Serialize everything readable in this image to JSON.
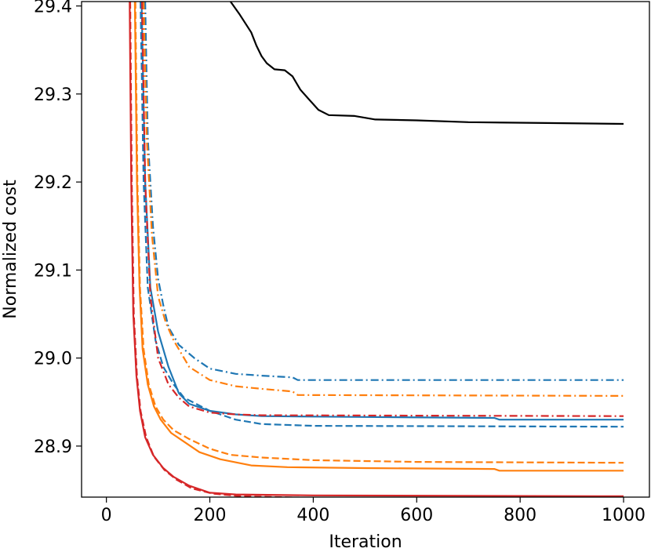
{
  "chart_data": {
    "type": "line",
    "title": "",
    "xlabel": "Iteration",
    "ylabel": "Normalized cost",
    "xlim": [
      -48,
      1050
    ],
    "ylim": [
      28.842,
      29.405
    ],
    "xticks": [
      0,
      200,
      400,
      600,
      800,
      1000
    ],
    "yticks": [
      28.9,
      29.0,
      29.1,
      29.2,
      29.3,
      29.4
    ],
    "xtick_labels": [
      "0",
      "200",
      "400",
      "600",
      "800",
      "1000"
    ],
    "ytick_labels": [
      "28.9",
      "29.0",
      "29.1",
      "29.2",
      "29.3",
      "29.4"
    ],
    "grid": false,
    "legend": "none",
    "series": [
      {
        "color": "#000000",
        "dash": "solid",
        "points": [
          [
            240,
            29.405
          ],
          [
            258,
            29.39
          ],
          [
            280,
            29.37
          ],
          [
            290,
            29.355
          ],
          [
            300,
            29.343
          ],
          [
            310,
            29.335
          ],
          [
            325,
            29.328
          ],
          [
            345,
            29.327
          ],
          [
            360,
            29.32
          ],
          [
            375,
            29.305
          ],
          [
            390,
            29.295
          ],
          [
            410,
            29.282
          ],
          [
            430,
            29.276
          ],
          [
            480,
            29.275
          ],
          [
            520,
            29.271
          ],
          [
            600,
            29.27
          ],
          [
            700,
            29.268
          ],
          [
            850,
            29.267
          ],
          [
            1000,
            29.266
          ]
        ]
      },
      {
        "color": "#1f77b4",
        "dash": "dashdot",
        "points": [
          [
            75,
            29.405
          ],
          [
            80,
            29.25
          ],
          [
            90,
            29.15
          ],
          [
            100,
            29.09
          ],
          [
            110,
            29.06
          ],
          [
            120,
            29.035
          ],
          [
            140,
            29.015
          ],
          [
            170,
            29.0
          ],
          [
            200,
            28.988
          ],
          [
            250,
            28.982
          ],
          [
            300,
            28.98
          ],
          [
            360,
            28.978
          ],
          [
            370,
            28.975
          ],
          [
            1000,
            28.975
          ]
        ]
      },
      {
        "color": "#1f77b4",
        "dash": "solid",
        "points": [
          [
            68,
            29.405
          ],
          [
            75,
            29.2
          ],
          [
            85,
            29.08
          ],
          [
            100,
            29.03
          ],
          [
            120,
            28.99
          ],
          [
            140,
            28.96
          ],
          [
            160,
            28.948
          ],
          [
            200,
            28.94
          ],
          [
            250,
            28.936
          ],
          [
            300,
            28.934
          ],
          [
            500,
            28.933
          ],
          [
            750,
            28.932
          ],
          [
            760,
            28.93
          ],
          [
            1000,
            28.93
          ]
        ]
      },
      {
        "color": "#1f77b4",
        "dash": "dashed",
        "points": [
          [
            66,
            29.405
          ],
          [
            72,
            29.2
          ],
          [
            80,
            29.08
          ],
          [
            95,
            29.02
          ],
          [
            110,
            28.99
          ],
          [
            130,
            28.97
          ],
          [
            150,
            28.955
          ],
          [
            200,
            28.94
          ],
          [
            250,
            28.93
          ],
          [
            300,
            28.925
          ],
          [
            400,
            28.923
          ],
          [
            1000,
            28.922
          ]
        ]
      },
      {
        "color": "#ff7f0e",
        "dash": "dashdot",
        "points": [
          [
            72,
            29.405
          ],
          [
            78,
            29.25
          ],
          [
            88,
            29.14
          ],
          [
            100,
            29.07
          ],
          [
            115,
            29.04
          ],
          [
            130,
            29.02
          ],
          [
            160,
            28.99
          ],
          [
            200,
            28.975
          ],
          [
            250,
            28.968
          ],
          [
            300,
            28.965
          ],
          [
            360,
            28.962
          ],
          [
            370,
            28.958
          ],
          [
            1000,
            28.957
          ]
        ]
      },
      {
        "color": "#d62728",
        "dash": "dashdot",
        "points": [
          [
            69,
            29.405
          ],
          [
            75,
            29.2
          ],
          [
            85,
            29.07
          ],
          [
            100,
            29.0
          ],
          [
            120,
            28.97
          ],
          [
            140,
            28.955
          ],
          [
            160,
            28.945
          ],
          [
            200,
            28.938
          ],
          [
            250,
            28.936
          ],
          [
            300,
            28.935
          ],
          [
            1000,
            28.934
          ]
        ]
      },
      {
        "color": "#ff7f0e",
        "dash": "dashed",
        "points": [
          [
            56,
            29.405
          ],
          [
            60,
            29.2
          ],
          [
            65,
            29.08
          ],
          [
            72,
            29.01
          ],
          [
            82,
            28.97
          ],
          [
            95,
            28.945
          ],
          [
            110,
            28.93
          ],
          [
            130,
            28.918
          ],
          [
            160,
            28.908
          ],
          [
            200,
            28.897
          ],
          [
            240,
            28.89
          ],
          [
            300,
            28.887
          ],
          [
            400,
            28.884
          ],
          [
            600,
            28.882
          ],
          [
            1000,
            28.881
          ]
        ]
      },
      {
        "color": "#ff7f0e",
        "dash": "solid",
        "points": [
          [
            55,
            29.405
          ],
          [
            59,
            29.2
          ],
          [
            64,
            29.08
          ],
          [
            70,
            29.01
          ],
          [
            80,
            28.97
          ],
          [
            92,
            28.945
          ],
          [
            105,
            28.93
          ],
          [
            125,
            28.915
          ],
          [
            150,
            28.905
          ],
          [
            180,
            28.893
          ],
          [
            220,
            28.885
          ],
          [
            280,
            28.878
          ],
          [
            350,
            28.876
          ],
          [
            500,
            28.875
          ],
          [
            750,
            28.874
          ],
          [
            760,
            28.872
          ],
          [
            1000,
            28.872
          ]
        ]
      },
      {
        "color": "#d62728",
        "dash": "solid",
        "points": [
          [
            45,
            29.405
          ],
          [
            48,
            29.2
          ],
          [
            52,
            29.05
          ],
          [
            58,
            28.98
          ],
          [
            65,
            28.94
          ],
          [
            75,
            28.91
          ],
          [
            90,
            28.89
          ],
          [
            110,
            28.875
          ],
          [
            130,
            28.865
          ],
          [
            160,
            28.855
          ],
          [
            200,
            28.847
          ],
          [
            250,
            28.845
          ],
          [
            400,
            28.844
          ],
          [
            1000,
            28.843
          ]
        ]
      },
      {
        "color": "#d62728",
        "dash": "dashed",
        "points": [
          [
            46,
            29.405
          ],
          [
            49,
            29.2
          ],
          [
            53,
            29.05
          ],
          [
            59,
            28.98
          ],
          [
            66,
            28.94
          ],
          [
            77,
            28.91
          ],
          [
            92,
            28.888
          ],
          [
            112,
            28.873
          ],
          [
            135,
            28.862
          ],
          [
            165,
            28.852
          ],
          [
            205,
            28.846
          ],
          [
            260,
            28.843
          ],
          [
            400,
            28.841
          ],
          [
            1000,
            28.84
          ]
        ]
      }
    ]
  }
}
